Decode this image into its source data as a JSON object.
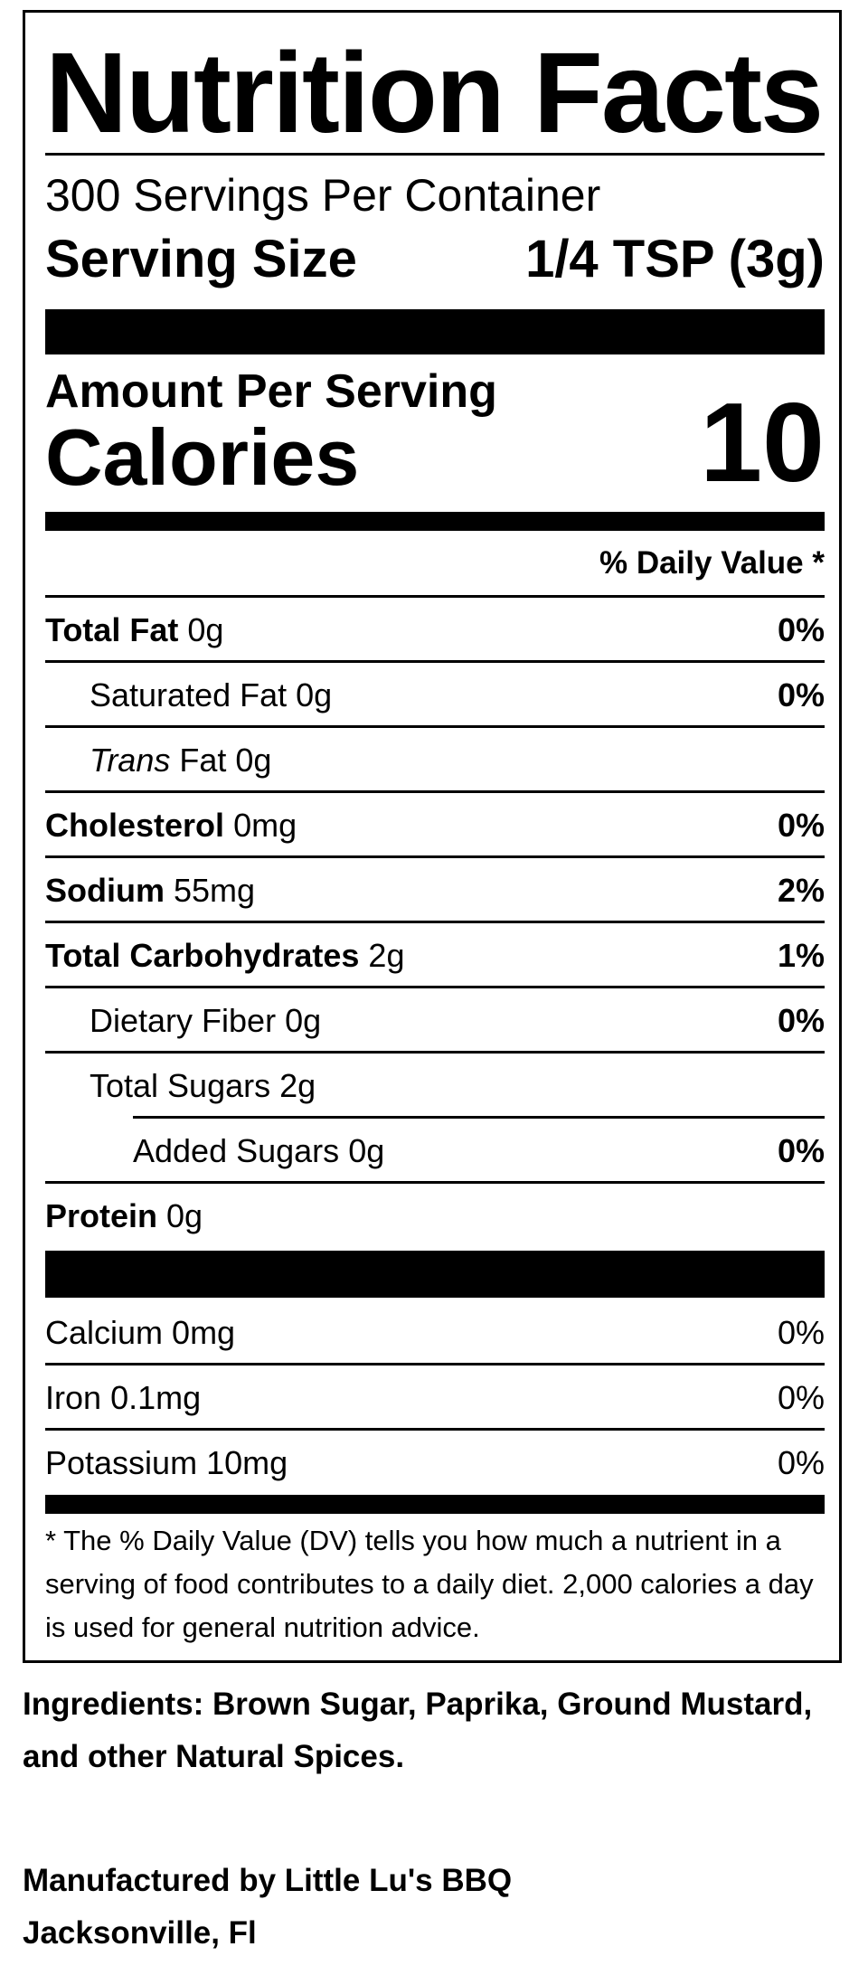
{
  "label": {
    "title": "Nutrition Facts",
    "servings_per_container": "300 Servings Per Container",
    "serving_size_label": "Serving Size",
    "serving_size_value": "1/4 TSP (3g)",
    "amount_per_serving": "Amount Per Serving",
    "calories_label": "Calories",
    "calories_value": "10",
    "daily_value_header": "% Daily Value *",
    "nutrients": [
      {
        "name": "Total Fat",
        "amount": "0g",
        "dv": "0%"
      },
      {
        "name": "Saturated Fat",
        "amount": "0g",
        "dv": "0%"
      },
      {
        "name_italic": "Trans",
        "name": "Fat",
        "amount": "0g",
        "dv": ""
      },
      {
        "name": "Cholesterol",
        "amount": "0mg",
        "dv": "0%"
      },
      {
        "name": "Sodium",
        "amount": "55mg",
        "dv": "2%"
      },
      {
        "name": "Total Carbohydrates",
        "amount": "2g",
        "dv": "1%"
      },
      {
        "name": "Dietary Fiber",
        "amount": "0g",
        "dv": "0%"
      },
      {
        "name": "Total Sugars",
        "amount": "2g",
        "dv": ""
      },
      {
        "name": "Added Sugars",
        "amount": "0g",
        "dv": "0%"
      },
      {
        "name": "Protein",
        "amount": "0g",
        "dv": ""
      }
    ],
    "vitamins": [
      {
        "name": "Calcium",
        "amount": "0mg",
        "dv": "0%"
      },
      {
        "name": "Iron",
        "amount": "0.1mg",
        "dv": "0%"
      },
      {
        "name": "Potassium",
        "amount": "10mg",
        "dv": "0%"
      }
    ],
    "footnote": "* The % Daily Value (DV) tells you how much a nutrient in a serving of food contributes to a daily diet. 2,000 calories a day is used for general nutrition advice."
  },
  "ingredients": "Ingredients: Brown Sugar, Paprika, Ground Mustard, and other Natural Spices.",
  "manufacturer": {
    "line1": "Manufactured by Little Lu's BBQ",
    "line2": "Jacksonville, Fl"
  }
}
